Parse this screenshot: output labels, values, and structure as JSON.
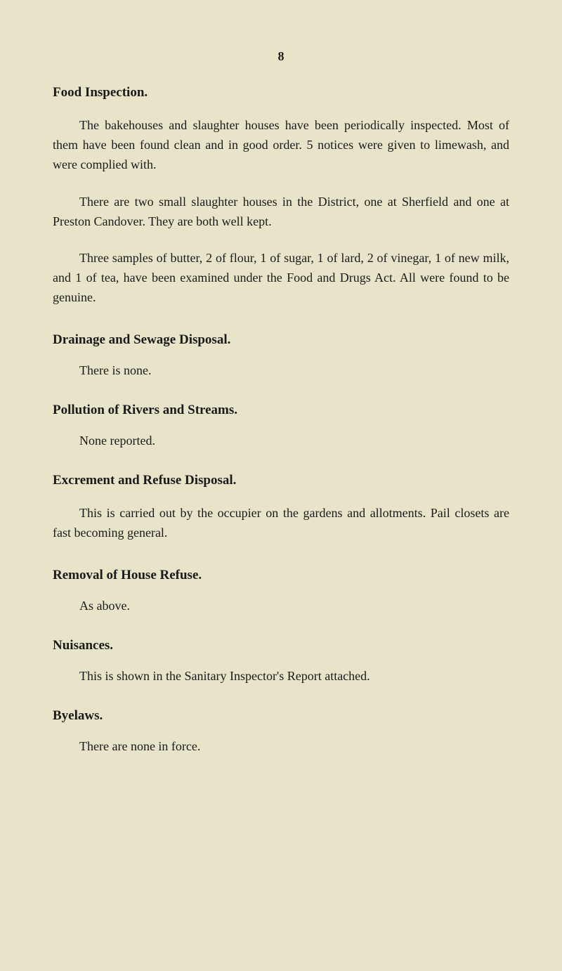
{
  "page_number": "8",
  "sections": {
    "food_inspection": {
      "heading": "Food Inspection.",
      "p1": "The bakehouses and slaughter houses have been periodically inspected. Most of them have been found clean and in good order. 5 notices were given to limewash, and were complied with.",
      "p2": "There are two small slaughter houses in the District, one at Sherfield and one at Preston Candover. They are both well kept.",
      "p3": "Three samples of butter, 2 of flour, 1 of sugar, 1 of lard, 2 of vinegar, 1 of new milk, and 1 of tea, have been examined under the Food and Drugs Act. All were found to be genuine."
    },
    "drainage": {
      "heading": "Drainage and Sewage Disposal.",
      "content": "There is none."
    },
    "pollution": {
      "heading": "Pollution of Rivers and Streams.",
      "content": "None reported."
    },
    "excrement": {
      "heading": "Excrement and Refuse Disposal.",
      "content": "This is carried out by the occupier on the gardens and allotments. Pail closets are fast becoming general."
    },
    "removal": {
      "heading": "Removal of House Refuse.",
      "content": "As above."
    },
    "nuisances": {
      "heading": "Nuisances.",
      "content": "This is shown in the Sanitary Inspector's Report attached."
    },
    "byelaws": {
      "heading": "Byelaws.",
      "content": "There are none in force."
    }
  },
  "colors": {
    "background": "#e8e4c9",
    "text": "#1a1a1a"
  },
  "typography": {
    "body_fontsize": 18,
    "heading_fontsize": 19,
    "line_height": 1.55
  }
}
